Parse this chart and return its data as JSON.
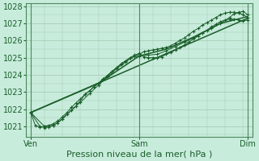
{
  "title": "",
  "xlabel": "Pression niveau de la mer( hPa )",
  "bg_color": "#c8ecdc",
  "plot_bg_color": "#c8ecdc",
  "grid_color": "#a0c8b0",
  "line_color": "#1a5e2a",
  "text_color": "#1a5e2a",
  "border_color": "#4a8a5a",
  "x_ticks_pos": [
    0,
    48,
    96
  ],
  "x_tick_labels": [
    "Ven",
    "Sam",
    "Dim"
  ],
  "ylim": [
    1020.4,
    1028.2
  ],
  "xlim": [
    -2,
    98
  ],
  "yticks": [
    1021,
    1022,
    1023,
    1024,
    1025,
    1026,
    1027,
    1028
  ],
  "series_marked": [
    [
      0,
      1021.8,
      2,
      1021.05,
      4,
      1020.95,
      6,
      1021.0,
      8,
      1021.05,
      10,
      1021.15,
      12,
      1021.3,
      14,
      1021.55,
      16,
      1021.8,
      18,
      1022.1,
      20,
      1022.35,
      22,
      1022.6,
      24,
      1022.85,
      26,
      1023.05,
      28,
      1023.3,
      30,
      1023.5,
      32,
      1023.75,
      34,
      1023.95,
      36,
      1024.2,
      38,
      1024.4,
      40,
      1024.6,
      42,
      1024.8,
      44,
      1025.0,
      46,
      1025.15,
      48,
      1025.25,
      50,
      1025.05,
      52,
      1025.0,
      54,
      1025.0,
      56,
      1025.0,
      58,
      1025.05,
      60,
      1025.2,
      62,
      1025.3,
      64,
      1025.45,
      66,
      1025.6,
      68,
      1025.75,
      70,
      1025.9,
      72,
      1026.1,
      74,
      1026.25,
      76,
      1026.45,
      78,
      1026.6,
      80,
      1026.8,
      82,
      1026.95,
      84,
      1027.1,
      86,
      1027.2,
      88,
      1027.25,
      90,
      1027.25,
      92,
      1027.2,
      94,
      1027.15,
      96,
      1027.2
    ],
    [
      0,
      1021.8,
      4,
      1021.0,
      6,
      1020.92,
      8,
      1020.95,
      10,
      1021.05,
      12,
      1021.2,
      16,
      1021.7,
      20,
      1022.15,
      24,
      1022.85,
      28,
      1023.3,
      32,
      1023.75,
      36,
      1024.2,
      40,
      1024.65,
      44,
      1025.0,
      48,
      1025.1,
      52,
      1025.15,
      56,
      1025.2,
      60,
      1025.4,
      64,
      1025.65,
      68,
      1025.9,
      72,
      1026.15,
      76,
      1026.45,
      80,
      1026.7,
      84,
      1027.0,
      88,
      1027.35,
      90,
      1027.55,
      92,
      1027.65,
      94,
      1027.7,
      96,
      1027.5
    ],
    [
      0,
      1021.8,
      6,
      1021.0,
      10,
      1021.05,
      14,
      1021.4,
      18,
      1021.95,
      22,
      1022.4,
      26,
      1022.9,
      30,
      1023.4,
      34,
      1023.9,
      38,
      1024.35,
      42,
      1024.75,
      46,
      1025.1,
      48,
      1025.2,
      50,
      1025.35,
      52,
      1025.4,
      54,
      1025.45,
      56,
      1025.5,
      58,
      1025.55,
      60,
      1025.6,
      62,
      1025.7,
      64,
      1025.85,
      66,
      1026.0,
      68,
      1026.15,
      70,
      1026.35,
      72,
      1026.55,
      74,
      1026.7,
      76,
      1026.9,
      78,
      1027.05,
      80,
      1027.2,
      82,
      1027.35,
      84,
      1027.5,
      86,
      1027.6,
      88,
      1027.65,
      90,
      1027.65,
      92,
      1027.6,
      94,
      1027.5,
      96,
      1027.35
    ]
  ],
  "series_plain": [
    [
      0,
      1021.8,
      96,
      1027.3
    ],
    [
      0,
      1021.8,
      30,
      1023.5,
      48,
      1025.1,
      60,
      1025.5,
      72,
      1026.2,
      84,
      1027.0,
      96,
      1027.4
    ]
  ]
}
